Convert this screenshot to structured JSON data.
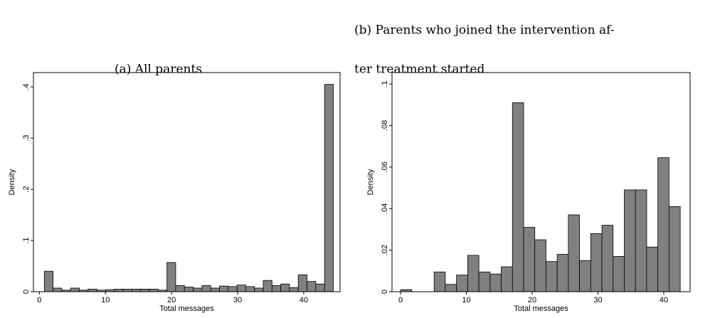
{
  "chart_data": [
    {
      "type": "histogram",
      "title": "(a) All parents",
      "x_label": "Total messages",
      "y_label": "Density",
      "color": "#808080",
      "bins": [
        0.75,
        2.075,
        3.4,
        4.725,
        6.05,
        7.375,
        8.7,
        10.025,
        11.35,
        12.675,
        14,
        15.325,
        16.65,
        17.975,
        19.3,
        20.625,
        21.95,
        23.275,
        24.6,
        25.925,
        27.25,
        28.575,
        29.9,
        31.225,
        32.55,
        33.875,
        35.2,
        36.525,
        37.85,
        39.175,
        40.5,
        41.825,
        43.15,
        44.475
      ],
      "values": [
        0.04,
        0.007,
        0.003,
        0.007,
        0.003,
        0.005,
        0.003,
        0.004,
        0.005,
        0.005,
        0.005,
        0.005,
        0.005,
        0.003,
        0.057,
        0.012,
        0.009,
        0.007,
        0.012,
        0.007,
        0.011,
        0.01,
        0.013,
        0.01,
        0.007,
        0.022,
        0.012,
        0.015,
        0.008,
        0.033,
        0.02,
        0.015,
        0.405
      ],
      "xlim": [
        -0.9,
        45.5
      ],
      "ylim": [
        0,
        0.428
      ],
      "xticks": [
        0,
        10,
        20,
        30,
        40
      ],
      "yticks": [
        0,
        {
          "value": 0.1,
          "label": ".1"
        },
        {
          "value": 0.2,
          "label": ".2"
        },
        {
          "value": 0.3,
          "label": ".3"
        },
        {
          "value": 0.4,
          "label": ".4"
        }
      ]
    },
    {
      "type": "histogram",
      "title": [
        "(b) Parents who joined the intervention af-",
        "ter treatment started"
      ],
      "x_label": "Total messages",
      "y_label": "Density",
      "color": "#808080",
      "bins": [
        0,
        1.7,
        3.4,
        5.1,
        6.8,
        8.5,
        10.2,
        11.9,
        13.6,
        15.3,
        17,
        18.7,
        20.4,
        22.1,
        23.8,
        25.5,
        27.2,
        28.9,
        30.6,
        32.3,
        34,
        35.7,
        37.4,
        39.1,
        40.8,
        42.5
      ],
      "values": [
        0.001,
        0,
        0,
        0.0095,
        0.0035,
        0.008,
        0.0175,
        0.0095,
        0.0085,
        0.012,
        0.091,
        0.031,
        0.025,
        0.0145,
        0.018,
        0.037,
        0.015,
        0.028,
        0.032,
        0.017,
        0.049,
        0.049,
        0.0215,
        0.0645,
        0.041
      ],
      "xlim": [
        -1.3,
        44
      ],
      "ylim": [
        0,
        0.1055
      ],
      "xticks": [
        0,
        10,
        20,
        30,
        40
      ],
      "yticks": [
        0,
        {
          "value": 0.02,
          "label": ".02"
        },
        {
          "value": 0.04,
          "label": ".04"
        },
        {
          "value": 0.06,
          "label": ".06"
        },
        {
          "value": 0.08,
          "label": ".08"
        },
        {
          "value": 0.1,
          "label": ".1"
        }
      ]
    }
  ]
}
